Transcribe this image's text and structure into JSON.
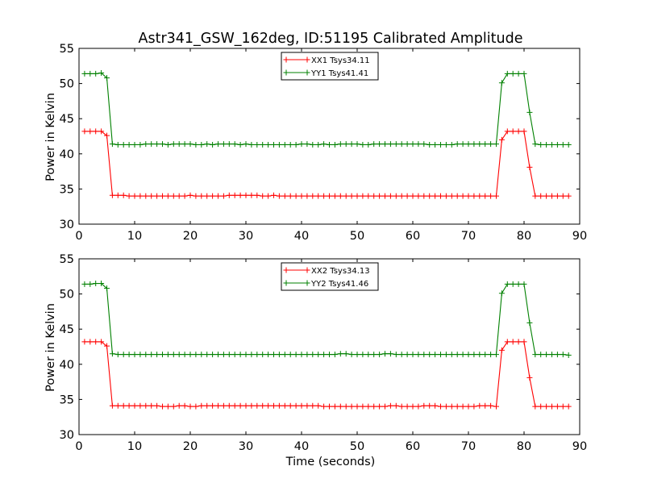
{
  "chart_data": [
    {
      "type": "line",
      "title": "Astr341_GSW_162deg, ID:51195 Calibrated Amplitude",
      "xlabel": "",
      "ylabel": "Power in Kelvin",
      "xlim": [
        0,
        90
      ],
      "ylim": [
        30,
        55
      ],
      "xticks": [
        "0",
        "10",
        "20",
        "30",
        "40",
        "50",
        "60",
        "70",
        "80",
        "90"
      ],
      "yticks": [
        "30",
        "35",
        "40",
        "45",
        "50",
        "55"
      ],
      "grid": false,
      "legend_position": "top-center",
      "x": [
        1,
        2,
        3,
        4,
        5,
        6,
        7,
        8,
        9,
        10,
        11,
        12,
        13,
        14,
        15,
        16,
        17,
        18,
        19,
        20,
        21,
        22,
        23,
        24,
        25,
        26,
        27,
        28,
        29,
        30,
        31,
        32,
        33,
        34,
        35,
        36,
        37,
        38,
        39,
        40,
        41,
        42,
        43,
        44,
        45,
        46,
        47,
        48,
        49,
        50,
        51,
        52,
        53,
        54,
        55,
        56,
        57,
        58,
        59,
        60,
        61,
        62,
        63,
        64,
        65,
        66,
        67,
        68,
        69,
        70,
        71,
        72,
        73,
        74,
        75,
        76,
        77,
        78,
        79,
        80,
        81,
        82,
        83,
        84,
        85,
        86,
        87,
        88
      ],
      "series": [
        {
          "name": "XX1 Tsys34.11",
          "color": "#ff0000",
          "values": [
            43.2,
            43.2,
            43.2,
            43.2,
            42.6,
            34.1,
            34.1,
            34.1,
            34.0,
            34.0,
            34.0,
            34.0,
            34.0,
            34.0,
            34.0,
            34.0,
            34.0,
            34.0,
            34.0,
            34.1,
            34.0,
            34.0,
            34.0,
            34.0,
            34.0,
            34.0,
            34.1,
            34.1,
            34.1,
            34.1,
            34.1,
            34.1,
            34.0,
            34.0,
            34.1,
            34.0,
            34.0,
            34.0,
            34.0,
            34.0,
            34.0,
            34.0,
            34.0,
            34.0,
            34.0,
            34.0,
            34.0,
            34.0,
            34.0,
            34.0,
            34.0,
            34.0,
            34.0,
            34.0,
            34.0,
            34.0,
            34.0,
            34.0,
            34.0,
            34.0,
            34.0,
            34.0,
            34.0,
            34.0,
            34.0,
            34.0,
            34.0,
            34.0,
            34.0,
            34.0,
            34.0,
            34.0,
            34.0,
            34.0,
            34.0,
            42.0,
            43.2,
            43.2,
            43.2,
            43.2,
            38.1,
            34.0,
            34.0,
            34.0,
            34.0,
            34.0,
            34.0,
            34.0
          ]
        },
        {
          "name": "YY1 Tsys41.41",
          "color": "#008000",
          "values": [
            51.4,
            51.4,
            51.4,
            51.5,
            50.8,
            41.4,
            41.3,
            41.3,
            41.3,
            41.3,
            41.3,
            41.4,
            41.4,
            41.4,
            41.4,
            41.3,
            41.4,
            41.4,
            41.4,
            41.4,
            41.3,
            41.3,
            41.4,
            41.3,
            41.4,
            41.4,
            41.4,
            41.4,
            41.3,
            41.4,
            41.3,
            41.3,
            41.3,
            41.3,
            41.3,
            41.3,
            41.3,
            41.3,
            41.3,
            41.4,
            41.4,
            41.3,
            41.3,
            41.4,
            41.3,
            41.3,
            41.4,
            41.4,
            41.4,
            41.4,
            41.3,
            41.3,
            41.4,
            41.4,
            41.4,
            41.4,
            41.4,
            41.4,
            41.4,
            41.4,
            41.4,
            41.4,
            41.3,
            41.3,
            41.3,
            41.3,
            41.3,
            41.4,
            41.4,
            41.4,
            41.4,
            41.4,
            41.4,
            41.4,
            41.4,
            50.1,
            51.4,
            51.4,
            51.4,
            51.4,
            45.9,
            41.4,
            41.3,
            41.3,
            41.3,
            41.3,
            41.3,
            41.3
          ]
        }
      ]
    },
    {
      "type": "line",
      "title": "",
      "xlabel": "Time (seconds)",
      "ylabel": "Power in Kelvin",
      "xlim": [
        0,
        90
      ],
      "ylim": [
        30,
        55
      ],
      "xticks": [
        "0",
        "10",
        "20",
        "30",
        "40",
        "50",
        "60",
        "70",
        "80",
        "90"
      ],
      "yticks": [
        "30",
        "35",
        "40",
        "45",
        "50",
        "55"
      ],
      "grid": false,
      "legend_position": "top-center",
      "x": [
        1,
        2,
        3,
        4,
        5,
        6,
        7,
        8,
        9,
        10,
        11,
        12,
        13,
        14,
        15,
        16,
        17,
        18,
        19,
        20,
        21,
        22,
        23,
        24,
        25,
        26,
        27,
        28,
        29,
        30,
        31,
        32,
        33,
        34,
        35,
        36,
        37,
        38,
        39,
        40,
        41,
        42,
        43,
        44,
        45,
        46,
        47,
        48,
        49,
        50,
        51,
        52,
        53,
        54,
        55,
        56,
        57,
        58,
        59,
        60,
        61,
        62,
        63,
        64,
        65,
        66,
        67,
        68,
        69,
        70,
        71,
        72,
        73,
        74,
        75,
        76,
        77,
        78,
        79,
        80,
        81,
        82,
        83,
        84,
        85,
        86,
        87,
        88
      ],
      "series": [
        {
          "name": "XX2 Tsys34.13",
          "color": "#ff0000",
          "values": [
            43.2,
            43.2,
            43.2,
            43.2,
            42.6,
            34.1,
            34.1,
            34.1,
            34.1,
            34.1,
            34.1,
            34.1,
            34.1,
            34.1,
            34.0,
            34.0,
            34.0,
            34.1,
            34.1,
            34.0,
            34.0,
            34.1,
            34.1,
            34.1,
            34.1,
            34.1,
            34.1,
            34.1,
            34.1,
            34.1,
            34.1,
            34.1,
            34.1,
            34.1,
            34.1,
            34.1,
            34.1,
            34.1,
            34.1,
            34.1,
            34.1,
            34.1,
            34.1,
            34.0,
            34.0,
            34.0,
            34.0,
            34.0,
            34.0,
            34.0,
            34.0,
            34.0,
            34.0,
            34.0,
            34.0,
            34.1,
            34.1,
            34.0,
            34.0,
            34.0,
            34.0,
            34.1,
            34.1,
            34.1,
            34.0,
            34.0,
            34.0,
            34.0,
            34.0,
            34.0,
            34.0,
            34.1,
            34.1,
            34.1,
            34.0,
            42.0,
            43.2,
            43.2,
            43.2,
            43.2,
            38.1,
            34.0,
            34.0,
            34.0,
            34.0,
            34.0,
            34.0,
            34.0
          ]
        },
        {
          "name": "YY2 Tsys41.46",
          "color": "#008000",
          "values": [
            51.4,
            51.4,
            51.5,
            51.5,
            50.8,
            41.5,
            41.4,
            41.4,
            41.4,
            41.4,
            41.4,
            41.4,
            41.4,
            41.4,
            41.4,
            41.4,
            41.4,
            41.4,
            41.4,
            41.4,
            41.4,
            41.4,
            41.4,
            41.4,
            41.4,
            41.4,
            41.4,
            41.4,
            41.4,
            41.4,
            41.4,
            41.4,
            41.4,
            41.4,
            41.4,
            41.4,
            41.4,
            41.4,
            41.4,
            41.4,
            41.4,
            41.4,
            41.4,
            41.4,
            41.4,
            41.4,
            41.5,
            41.5,
            41.4,
            41.4,
            41.4,
            41.4,
            41.4,
            41.4,
            41.5,
            41.5,
            41.4,
            41.4,
            41.4,
            41.4,
            41.4,
            41.4,
            41.4,
            41.4,
            41.4,
            41.4,
            41.4,
            41.4,
            41.4,
            41.4,
            41.4,
            41.4,
            41.4,
            41.4,
            41.4,
            50.1,
            51.4,
            51.4,
            51.4,
            51.4,
            45.9,
            41.4,
            41.4,
            41.4,
            41.4,
            41.4,
            41.4,
            41.3
          ]
        }
      ]
    }
  ]
}
